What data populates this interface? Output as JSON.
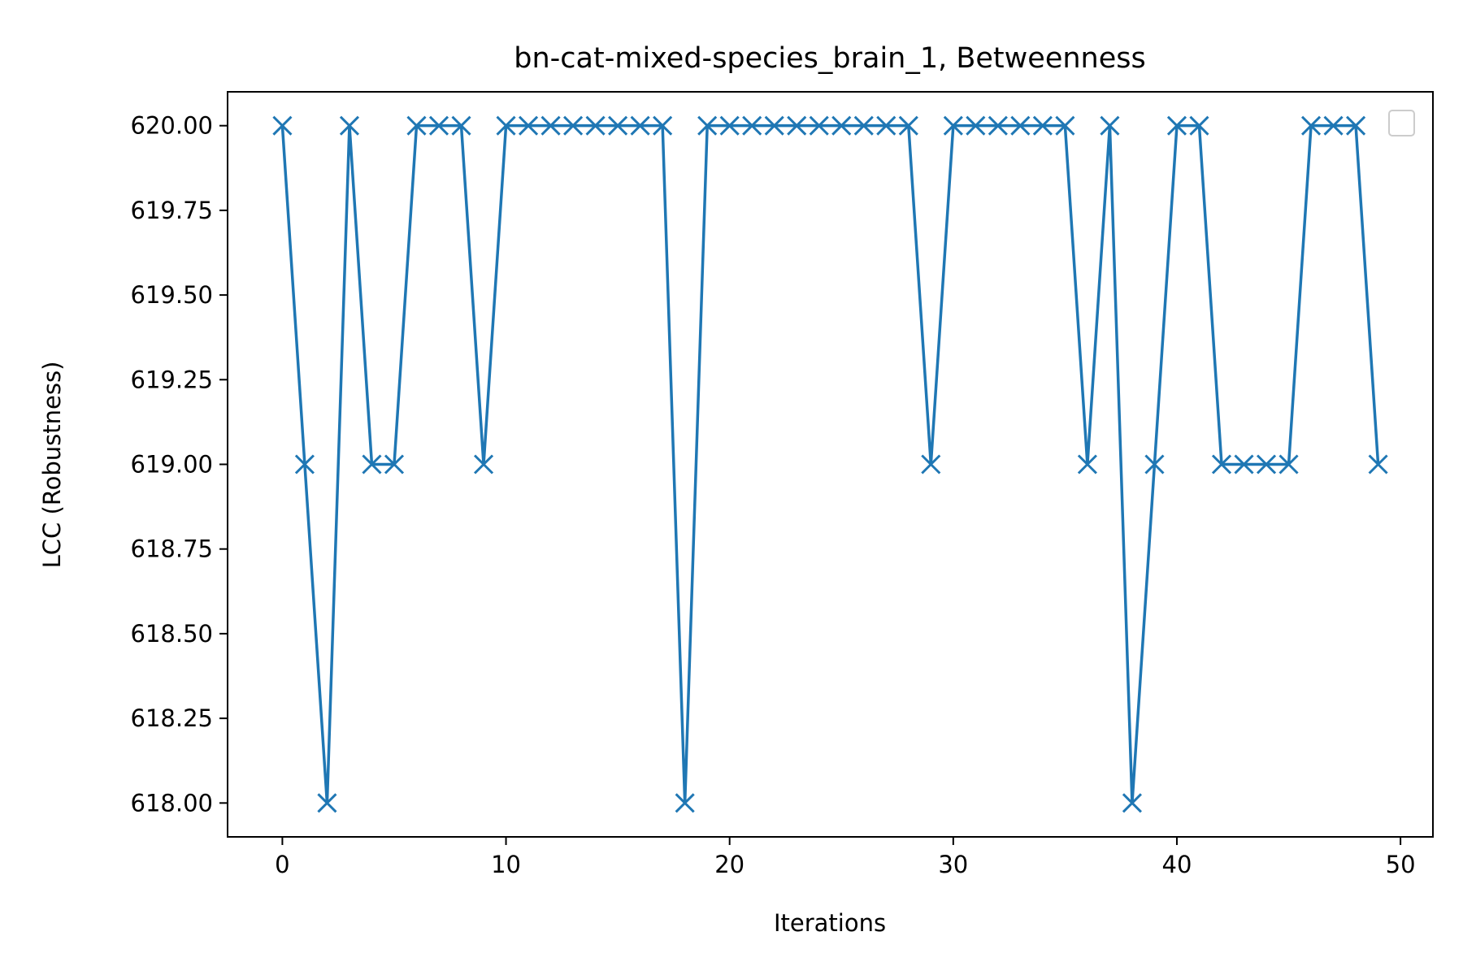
{
  "chart_data": {
    "type": "line",
    "title": "bn-cat-mixed-species_brain_1, Betweenness",
    "xlabel": "Iterations",
    "ylabel": "LCC (Robustness)",
    "xlim": [
      -2.45,
      51.45
    ],
    "ylim": [
      617.9,
      620.1
    ],
    "xticks": [
      0,
      10,
      20,
      30,
      40,
      50
    ],
    "xtick_labels": [
      "0",
      "10",
      "20",
      "30",
      "40",
      "50"
    ],
    "yticks": [
      618.0,
      618.25,
      618.5,
      618.75,
      619.0,
      619.25,
      619.5,
      619.75,
      620.0
    ],
    "ytick_labels": [
      "618.00",
      "618.25",
      "618.50",
      "618.75",
      "619.00",
      "619.25",
      "619.50",
      "619.75",
      "620.00"
    ],
    "grid": false,
    "legend": {
      "placement": "top-right",
      "entries": []
    },
    "series": [
      {
        "color": "#1f77b4",
        "marker": "x",
        "x": [
          0,
          1,
          2,
          3,
          4,
          5,
          6,
          7,
          8,
          9,
          10,
          11,
          12,
          13,
          14,
          15,
          16,
          17,
          18,
          19,
          20,
          21,
          22,
          23,
          24,
          25,
          26,
          27,
          28,
          29,
          30,
          31,
          32,
          33,
          34,
          35,
          36,
          37,
          38,
          39,
          40,
          41,
          42,
          43,
          44,
          45,
          46,
          47,
          48,
          49
        ],
        "y": [
          620,
          619,
          618,
          620,
          619,
          619,
          620,
          620,
          620,
          619,
          620,
          620,
          620,
          620,
          620,
          620,
          620,
          620,
          618,
          620,
          620,
          620,
          620,
          620,
          620,
          620,
          620,
          620,
          620,
          619,
          620,
          620,
          620,
          620,
          620,
          620,
          619,
          620,
          618,
          619,
          620,
          620,
          619,
          619,
          619,
          619,
          620,
          620,
          620,
          619
        ]
      }
    ]
  }
}
